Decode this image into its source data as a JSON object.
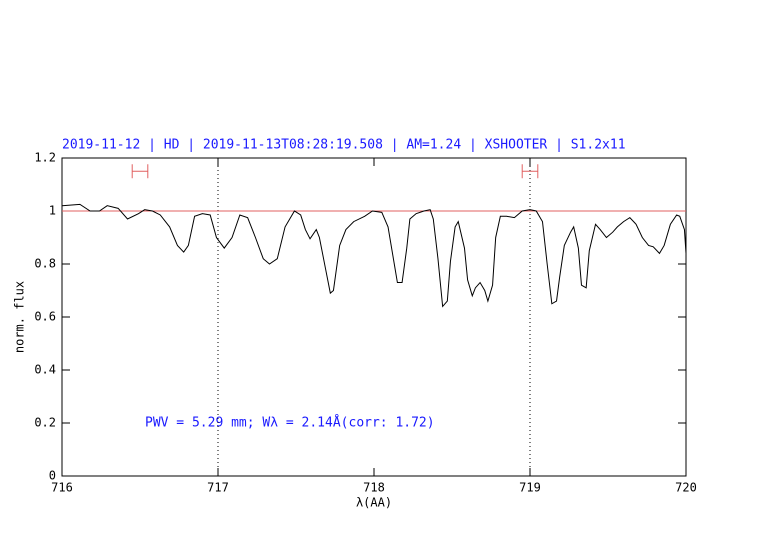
{
  "chart_data": {
    "type": "line",
    "title": "2019-11-12 | HD | 2019-11-13T08:28:19.508 | AM=1.24 | XSHOOTER | S1.2x11",
    "annotation": "PWV = 5.29 mm; Wλ = 2.14Å(corr: 1.72)",
    "xlabel": "λ(AA)",
    "ylabel": "norm. flux",
    "xlim": [
      716,
      720
    ],
    "ylim": [
      0,
      1.2
    ],
    "xticks": [
      716,
      717,
      718,
      719,
      720
    ],
    "yticks": [
      0,
      0.2,
      0.4,
      0.6,
      0.8,
      1,
      1.2
    ],
    "hline": 1,
    "hline_color": "#e06060",
    "vlines": [
      717,
      719
    ],
    "range_markers": [
      {
        "x": [
          716.45,
          716.55
        ],
        "y": 1.15
      },
      {
        "x": [
          718.95,
          719.05
        ],
        "y": 1.15
      }
    ],
    "series": [
      {
        "color": "#000000",
        "x": [
          716,
          716.115,
          716.18,
          716.24,
          716.29,
          716.36,
          716.42,
          716.49,
          716.53,
          716.58,
          716.63,
          716.69,
          716.74,
          716.78,
          716.81,
          716.85,
          716.9,
          716.95,
          716.99,
          717.04,
          717.09,
          717.14,
          717.19,
          717.24,
          717.29,
          717.33,
          717.38,
          717.43,
          717.49,
          717.53,
          717.56,
          717.59,
          717.63,
          717.65,
          717.69,
          717.72,
          717.74,
          717.78,
          717.82,
          717.87,
          717.94,
          717.99,
          718.05,
          718.09,
          718.13,
          718.15,
          718.18,
          718.21,
          718.23,
          718.27,
          718.32,
          718.36,
          718.38,
          718.41,
          718.44,
          718.47,
          718.49,
          718.52,
          718.54,
          718.58,
          718.6,
          718.63,
          718.65,
          718.68,
          718.71,
          718.73,
          718.76,
          718.78,
          718.81,
          718.85,
          718.9,
          718.95,
          719,
          719.04,
          719.08,
          719.11,
          719.14,
          719.17,
          719.19,
          719.22,
          719.26,
          719.28,
          719.31,
          719.33,
          719.36,
          719.38,
          719.42,
          719.45,
          719.49,
          719.53,
          719.56,
          719.6,
          719.64,
          719.68,
          719.72,
          719.76,
          719.79,
          719.83,
          719.86,
          719.9,
          719.94,
          719.96,
          719.99,
          720
        ],
        "values": [
          1.02,
          1.025,
          1.0,
          1.0,
          1.02,
          1.01,
          0.97,
          0.99,
          1.005,
          1.0,
          0.985,
          0.94,
          0.87,
          0.845,
          0.87,
          0.98,
          0.99,
          0.985,
          0.9,
          0.86,
          0.9,
          0.985,
          0.975,
          0.9,
          0.82,
          0.8,
          0.82,
          0.94,
          1.0,
          0.985,
          0.93,
          0.895,
          0.93,
          0.9,
          0.78,
          0.69,
          0.7,
          0.87,
          0.93,
          0.96,
          0.98,
          1.0,
          0.995,
          0.94,
          0.8,
          0.73,
          0.73,
          0.86,
          0.97,
          0.99,
          1.0,
          1.005,
          0.97,
          0.82,
          0.64,
          0.66,
          0.81,
          0.94,
          0.96,
          0.86,
          0.74,
          0.68,
          0.71,
          0.73,
          0.7,
          0.66,
          0.72,
          0.9,
          0.98,
          0.98,
          0.975,
          1.0,
          1.005,
          1.0,
          0.96,
          0.8,
          0.65,
          0.66,
          0.75,
          0.87,
          0.92,
          0.94,
          0.86,
          0.72,
          0.71,
          0.85,
          0.95,
          0.93,
          0.9,
          0.92,
          0.94,
          0.96,
          0.975,
          0.95,
          0.9,
          0.87,
          0.865,
          0.84,
          0.87,
          0.95,
          0.985,
          0.98,
          0.93,
          0.84
        ]
      }
    ]
  }
}
